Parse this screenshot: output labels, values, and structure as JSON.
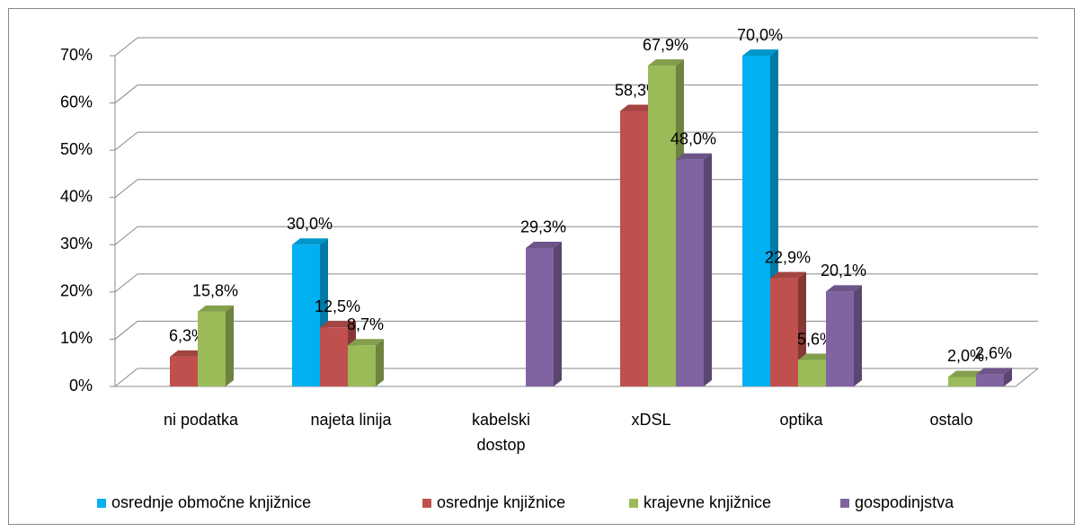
{
  "chart_data": {
    "type": "bar3d",
    "categories": [
      "ni podatka",
      "najeta linija",
      "kabelski\ndostop",
      "xDSL",
      "optika",
      "ostalo"
    ],
    "series": [
      {
        "name": "osrednje območne knjižnice",
        "color": "#00b0f0",
        "values": [
          null,
          30.0,
          null,
          null,
          70.0,
          null
        ],
        "value_labels": [
          null,
          "30,0%",
          null,
          null,
          "70,0%",
          null
        ]
      },
      {
        "name": "osrednje knjižnice",
        "color": "#c0504d",
        "values": [
          6.3,
          12.5,
          null,
          58.3,
          22.9,
          null
        ],
        "value_labels": [
          "6,3%",
          "12,5%",
          null,
          "58,3%",
          "22,9%",
          null
        ]
      },
      {
        "name": "krajevne knjižnice",
        "color": "#9bbb59",
        "values": [
          15.8,
          8.7,
          null,
          67.9,
          5.6,
          2.0
        ],
        "value_labels": [
          "15,8%",
          "8,7%",
          null,
          "67,9%",
          "5,6%",
          "2,0%"
        ]
      },
      {
        "name": "gospodinjstva",
        "color": "#8064a2",
        "values": [
          null,
          null,
          29.3,
          48.0,
          20.1,
          2.6
        ],
        "value_labels": [
          null,
          null,
          "29,3%",
          "48,0%",
          "20,1%",
          "2,6%"
        ]
      }
    ],
    "ylim": [
      0,
      70
    ],
    "yticks": [
      {
        "value": 0,
        "label": "0%"
      },
      {
        "value": 10,
        "label": "10%"
      },
      {
        "value": 20,
        "label": "20%"
      },
      {
        "value": 30,
        "label": "30%"
      },
      {
        "value": 40,
        "label": "40%"
      },
      {
        "value": 50,
        "label": "50%"
      },
      {
        "value": 60,
        "label": "60%"
      },
      {
        "value": 70,
        "label": "70%"
      }
    ],
    "grid": true,
    "legend": "bottom"
  }
}
